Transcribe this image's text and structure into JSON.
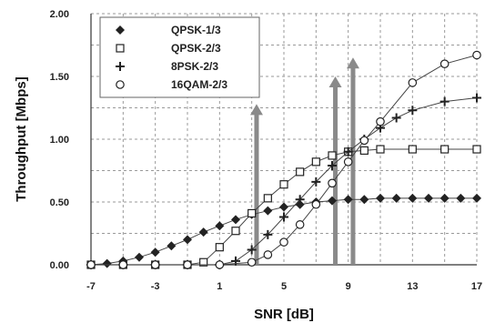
{
  "chart_data": {
    "type": "line",
    "xlabel": "SNR [dB]",
    "ylabel": "Throughput [Mbps]",
    "xlim": [
      -7,
      17
    ],
    "ylim": [
      0,
      2.0
    ],
    "x_ticks": [
      -7,
      -3,
      1,
      5,
      9,
      13,
      17
    ],
    "x_tick_labels": [
      "-7",
      "-3",
      "1",
      "5",
      "9",
      "13",
      "17"
    ],
    "y_ticks": [
      0,
      0.5,
      1.0,
      1.5,
      2.0
    ],
    "y_tick_labels": [
      "0.00",
      "0.50",
      "1.00",
      "1.50",
      "2.00"
    ],
    "grid": true,
    "legend_position": "top-left",
    "series": [
      {
        "name": "QPSK-1/3",
        "marker": "filled-diamond",
        "x": [
          -7,
          -6,
          -5,
          -4,
          -3,
          -2,
          -1,
          0,
          1,
          2,
          3,
          4,
          5,
          6,
          7,
          8,
          9,
          10,
          11,
          12,
          13,
          14,
          15,
          16,
          17
        ],
        "y": [
          0.0,
          0.01,
          0.03,
          0.06,
          0.1,
          0.15,
          0.2,
          0.26,
          0.31,
          0.36,
          0.4,
          0.43,
          0.46,
          0.48,
          0.5,
          0.51,
          0.52,
          0.52,
          0.53,
          0.53,
          0.53,
          0.53,
          0.53,
          0.53,
          0.53
        ]
      },
      {
        "name": "QPSK-2/3",
        "marker": "open-square",
        "x": [
          -7,
          -5,
          -3,
          -1,
          0,
          1,
          2,
          3,
          4,
          5,
          6,
          7,
          8,
          9,
          10,
          11,
          13,
          15,
          17
        ],
        "y": [
          0.0,
          0.0,
          0.0,
          0.0,
          0.02,
          0.14,
          0.27,
          0.41,
          0.53,
          0.64,
          0.74,
          0.82,
          0.87,
          0.9,
          0.91,
          0.92,
          0.92,
          0.92,
          0.92
        ]
      },
      {
        "name": "8PSK-2/3",
        "marker": "plus",
        "x": [
          -7,
          -5,
          -3,
          -1,
          1,
          2,
          3,
          4,
          5,
          6,
          7,
          8,
          9,
          10,
          11,
          12,
          13,
          15,
          17
        ],
        "y": [
          0.0,
          0.0,
          0.0,
          0.0,
          0.0,
          0.03,
          0.12,
          0.24,
          0.38,
          0.52,
          0.66,
          0.79,
          0.9,
          1.0,
          1.09,
          1.17,
          1.23,
          1.3,
          1.33
        ]
      },
      {
        "name": "16QAM-2/3",
        "marker": "open-circle",
        "x": [
          -7,
          -5,
          -3,
          -1,
          1,
          3,
          4,
          5,
          6,
          7,
          8,
          9,
          10,
          11,
          13,
          15,
          17
        ],
        "y": [
          0.0,
          0.0,
          0.0,
          0.0,
          0.0,
          0.02,
          0.08,
          0.18,
          0.32,
          0.48,
          0.65,
          0.82,
          0.99,
          1.14,
          1.45,
          1.6,
          1.67
        ]
      }
    ],
    "annotations": [
      {
        "kind": "vertical-arrow",
        "x": 3.3,
        "y_from": 0.0,
        "y_to": 1.28
      },
      {
        "kind": "vertical-arrow",
        "x": 8.2,
        "y_from": 0.0,
        "y_to": 1.5
      },
      {
        "kind": "vertical-arrow",
        "x": 9.3,
        "y_from": 0.0,
        "y_to": 1.65
      }
    ],
    "colors": {
      "series": "#222222",
      "arrow": "#8a8a8a",
      "grid": "#9a9a9a"
    }
  }
}
